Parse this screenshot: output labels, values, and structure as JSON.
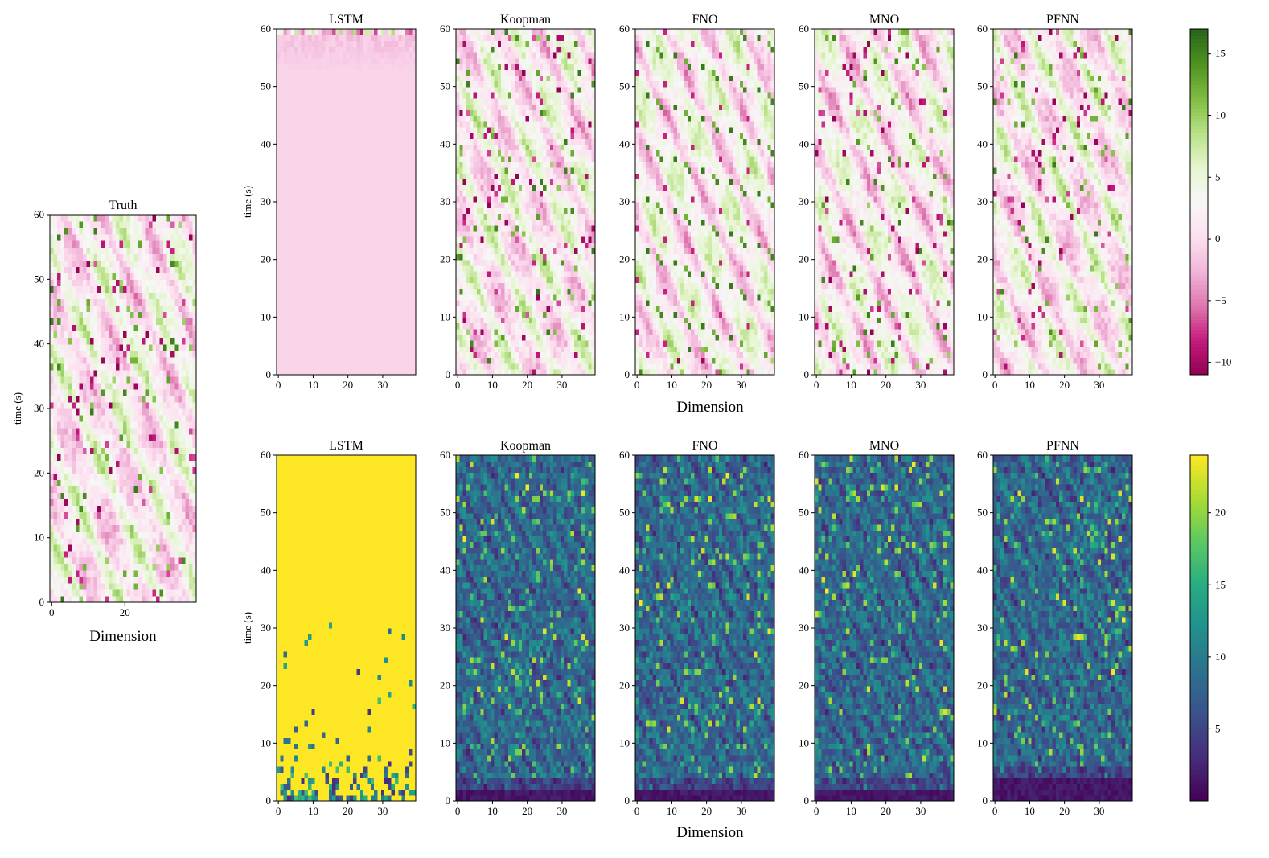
{
  "chart_data": {
    "type": "heatmap",
    "rows": {
      "top": {
        "colormap": "PiYG",
        "xlabel": "Dimension",
        "ylabel": "time (s)",
        "colorbar": {
          "range": [
            -11,
            17
          ],
          "ticks": [
            -10,
            -5,
            0,
            5,
            10,
            15
          ]
        }
      },
      "bottom": {
        "colormap": "viridis",
        "xlabel": "Dimension",
        "ylabel": "time (s)",
        "colorbar": {
          "range": [
            0,
            24
          ],
          "ticks": [
            5,
            10,
            15,
            20
          ]
        }
      }
    },
    "panels": [
      {
        "id": "truth",
        "title": "Truth",
        "row": "top",
        "xlabel": "Dimension",
        "ylabel": "time (s)",
        "xticks": [
          0,
          20
        ],
        "yticks": [
          0,
          10,
          20,
          30,
          40,
          50,
          60
        ],
        "xlim": [
          0,
          40
        ],
        "ylim": [
          0,
          60
        ],
        "grid": [
          40,
          60
        ],
        "pattern": "diagonal-stripes"
      },
      {
        "id": "lstm-top",
        "title": "LSTM",
        "row": "top",
        "ylabel": "time (s)",
        "xticks": [
          0,
          10,
          20,
          30
        ],
        "yticks": [
          0,
          10,
          20,
          30,
          40,
          50,
          60
        ],
        "xlim": [
          0,
          40
        ],
        "ylim": [
          0,
          60
        ],
        "grid": [
          40,
          60
        ],
        "pattern": "collapsed-constant"
      },
      {
        "id": "koopman-top",
        "title": "Koopman",
        "row": "top",
        "xticks": [
          0,
          10,
          20,
          30
        ],
        "yticks": [
          0,
          10,
          20,
          30,
          40,
          50,
          60
        ],
        "xlim": [
          0,
          40
        ],
        "ylim": [
          0,
          60
        ],
        "grid": [
          40,
          60
        ],
        "pattern": "diagonal-stripes"
      },
      {
        "id": "fno-top",
        "title": "FNO",
        "row": "top",
        "xticks": [
          0,
          10,
          20,
          30
        ],
        "yticks": [
          0,
          10,
          20,
          30,
          40,
          50,
          60
        ],
        "xlim": [
          0,
          40
        ],
        "ylim": [
          0,
          60
        ],
        "grid": [
          40,
          60
        ],
        "pattern": "diagonal-stripes"
      },
      {
        "id": "mno-top",
        "title": "MNO",
        "row": "top",
        "xticks": [
          0,
          10,
          20,
          30
        ],
        "yticks": [
          0,
          10,
          20,
          30,
          40,
          50,
          60
        ],
        "xlim": [
          0,
          40
        ],
        "ylim": [
          0,
          60
        ],
        "grid": [
          40,
          60
        ],
        "pattern": "diagonal-stripes"
      },
      {
        "id": "pfnn-top",
        "title": "PFNN",
        "row": "top",
        "xticks": [
          0,
          10,
          20,
          30
        ],
        "yticks": [
          0,
          10,
          20,
          30,
          40,
          50,
          60
        ],
        "xlim": [
          0,
          40
        ],
        "ylim": [
          0,
          60
        ],
        "grid": [
          40,
          60
        ],
        "pattern": "diagonal-stripes"
      },
      {
        "id": "lstm-bottom",
        "title": "LSTM",
        "row": "bottom",
        "ylabel": "time (s)",
        "xticks": [
          0,
          10,
          20,
          30
        ],
        "yticks": [
          0,
          10,
          20,
          30,
          40,
          50,
          60
        ],
        "xlim": [
          0,
          40
        ],
        "ylim": [
          0,
          60
        ],
        "grid": [
          40,
          60
        ],
        "pattern": "saturated-error"
      },
      {
        "id": "koopman-bottom",
        "title": "Koopman",
        "row": "bottom",
        "xticks": [
          0,
          10,
          20,
          30
        ],
        "yticks": [
          0,
          10,
          20,
          30,
          40,
          50,
          60
        ],
        "xlim": [
          0,
          40
        ],
        "ylim": [
          0,
          60
        ],
        "grid": [
          40,
          60
        ],
        "pattern": "noisy-error"
      },
      {
        "id": "fno-bottom",
        "title": "FNO",
        "row": "bottom",
        "xticks": [
          0,
          10,
          20,
          30
        ],
        "yticks": [
          0,
          10,
          20,
          30,
          40,
          50,
          60
        ],
        "xlim": [
          0,
          40
        ],
        "ylim": [
          0,
          60
        ],
        "grid": [
          40,
          60
        ],
        "pattern": "noisy-error"
      },
      {
        "id": "mno-bottom",
        "title": "MNO",
        "row": "bottom",
        "xticks": [
          0,
          10,
          20,
          30
        ],
        "yticks": [
          0,
          10,
          20,
          30,
          40,
          50,
          60
        ],
        "xlim": [
          0,
          40
        ],
        "ylim": [
          0,
          60
        ],
        "grid": [
          40,
          60
        ],
        "pattern": "noisy-error"
      },
      {
        "id": "pfnn-bottom",
        "title": "PFNN",
        "row": "bottom",
        "xticks": [
          0,
          10,
          20,
          30
        ],
        "yticks": [
          0,
          10,
          20,
          30,
          40,
          50,
          60
        ],
        "xlim": [
          0,
          40
        ],
        "ylim": [
          0,
          60
        ],
        "grid": [
          40,
          60
        ],
        "pattern": "noisy-error"
      }
    ]
  }
}
